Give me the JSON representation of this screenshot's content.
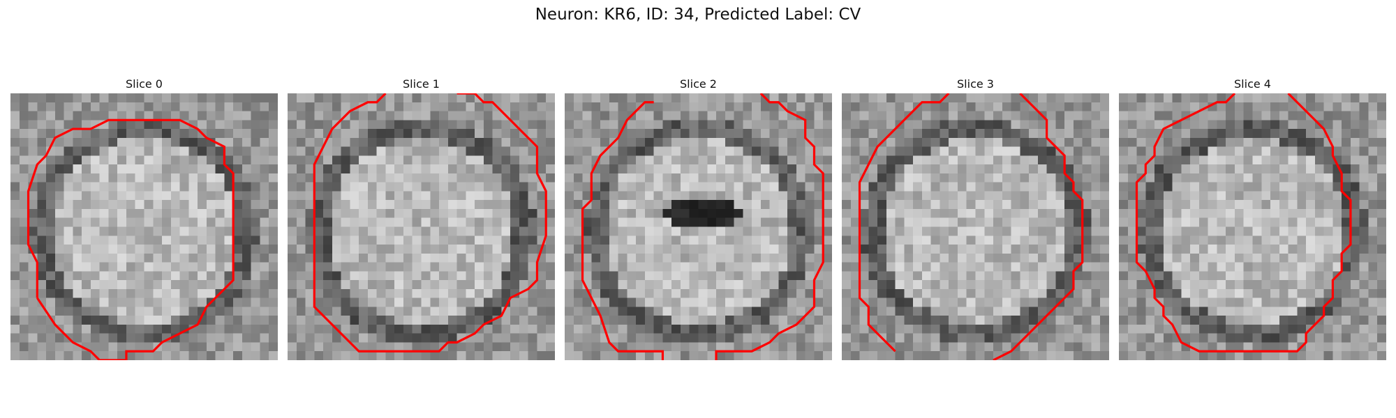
{
  "figure": {
    "title": "Neuron: KR6, ID: 34, Predicted Label: CV"
  },
  "contour_color": "#ff0000",
  "slices": [
    {
      "title": "Slice 0",
      "dark_spot": null
    },
    {
      "title": "Slice 1",
      "dark_spot": null
    },
    {
      "title": "Slice 2",
      "dark_spot": "center-left"
    },
    {
      "title": "Slice 3",
      "dark_spot": null
    },
    {
      "title": "Slice 4",
      "dark_spot": null
    }
  ]
}
